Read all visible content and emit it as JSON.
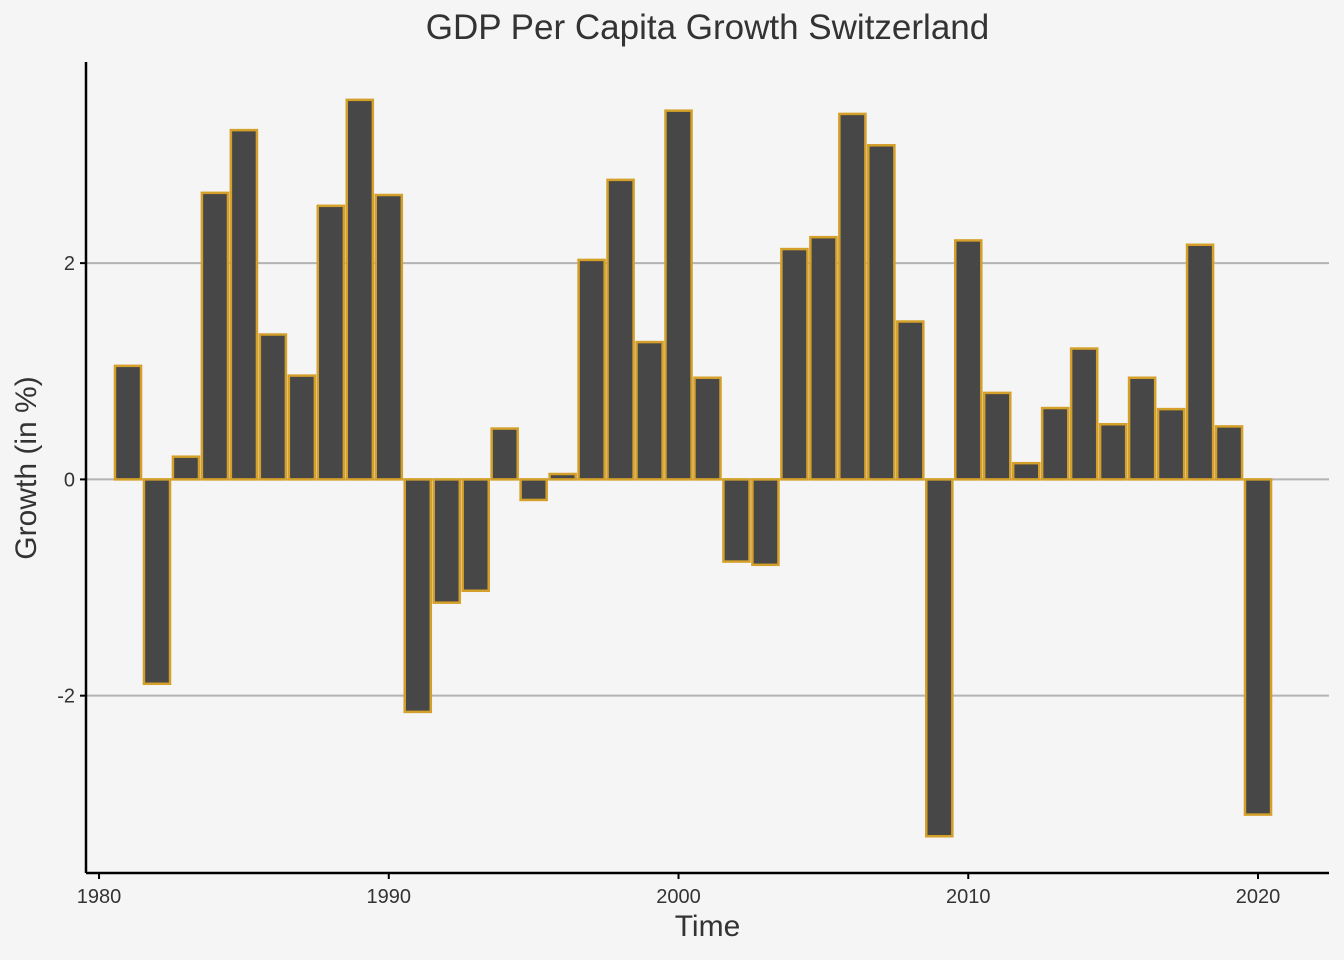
{
  "chart_data": {
    "type": "bar",
    "title": "GDP Per Capita Growth Switzerland",
    "xlabel": "Time",
    "ylabel": "Growth (in %)",
    "x": [
      1981,
      1982,
      1983,
      1984,
      1985,
      1986,
      1987,
      1988,
      1989,
      1990,
      1991,
      1992,
      1993,
      1994,
      1995,
      1996,
      1997,
      1998,
      1999,
      2000,
      2001,
      2002,
      2003,
      2004,
      2005,
      2006,
      2007,
      2008,
      2009,
      2010,
      2011,
      2012,
      2013,
      2014,
      2015,
      2016,
      2017,
      2018,
      2019,
      2020
    ],
    "values": [
      1.05,
      -1.89,
      0.21,
      2.65,
      3.23,
      1.34,
      0.96,
      2.53,
      3.51,
      2.63,
      -2.15,
      -1.14,
      -1.03,
      0.47,
      -0.19,
      0.05,
      2.03,
      2.77,
      1.27,
      3.41,
      0.94,
      -0.76,
      -0.79,
      2.13,
      2.24,
      3.38,
      3.09,
      1.46,
      -3.3,
      2.21,
      0.8,
      0.15,
      0.66,
      1.21,
      0.51,
      0.94,
      0.65,
      2.17,
      0.49,
      -3.1
    ],
    "xlim": [
      1979.55,
      1981.0,
      2022.45
    ],
    "ylim": [
      -3.64,
      3.86
    ],
    "xticks": [
      1980,
      1990,
      2000,
      2010,
      2020
    ],
    "yticks": [
      -2,
      0,
      2
    ],
    "ytick_labels": [
      "-2",
      "0",
      "2"
    ],
    "grid": {
      "horizontal": true,
      "vertical": false
    },
    "legend": "none",
    "colors": {
      "background": "#f5f5f5",
      "bar_fill": "#474747",
      "bar_outline": "#d4a02a",
      "grid": "#b3b3b3",
      "axis": "#000000",
      "text": "#333333"
    }
  }
}
